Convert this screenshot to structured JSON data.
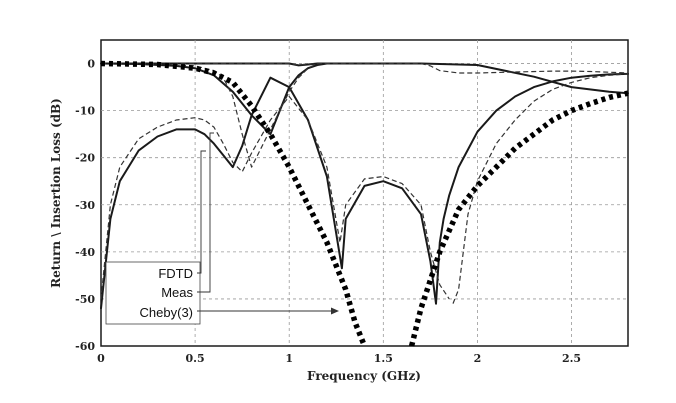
{
  "chart_data": {
    "type": "line",
    "xlabel": "Frequency (GHz)",
    "ylabel": "Return \\ Insertion Loss (dB)",
    "xlim": [
      0,
      2.8
    ],
    "ylim": [
      -60,
      5
    ],
    "x_ticks": [
      0,
      0.5,
      1,
      1.5,
      2,
      2.5
    ],
    "x_tick_labels": [
      "0",
      "0.5",
      "1",
      "1.5",
      "2",
      "2.5"
    ],
    "y_ticks": [
      0,
      -10,
      -20,
      -30,
      -40,
      -50,
      -60
    ],
    "y_tick_labels": [
      "0",
      "-10",
      "-20",
      "-30",
      "-40",
      "-50",
      "-60"
    ],
    "grid": true,
    "legend": {
      "placement": "bottom-left",
      "entries": [
        "FDTD",
        "Meas",
        "Cheby(3)"
      ]
    },
    "series": [
      {
        "name": "FDTD",
        "style": "solid",
        "color": "#1a1a1a",
        "curves": [
          {
            "x": [
              0.0,
              1.0,
              1.05,
              1.1,
              1.15,
              1.2,
              1.3,
              1.5,
              1.7,
              2.0,
              2.3,
              2.5,
              2.7,
              2.8
            ],
            "y": [
              0.0,
              0.0,
              -0.4,
              -0.2,
              0.0,
              0.0,
              0.0,
              0.0,
              0.0,
              -0.3,
              -2.8,
              -5.0,
              -6.0,
              -6.3
            ]
          },
          {
            "x": [
              0.0,
              0.2,
              0.4,
              0.5,
              0.6,
              0.7,
              0.8,
              0.9,
              0.95,
              1.0,
              1.05,
              1.1,
              1.15,
              1.2
            ],
            "y": [
              0.0,
              -0.1,
              -0.5,
              -1.0,
              -2.5,
              -6.0,
              -11.0,
              -15.0,
              -10.0,
              -5.0,
              -2.5,
              -1.0,
              -0.3,
              0.0
            ]
          },
          {
            "x": [
              0.0,
              0.05,
              0.1,
              0.2,
              0.3,
              0.4,
              0.5,
              0.55,
              0.6,
              0.65,
              0.7,
              0.75,
              0.8,
              0.9,
              1.0,
              1.1,
              1.2,
              1.28,
              1.3,
              1.4,
              1.5,
              1.6,
              1.7,
              1.75,
              1.78
            ],
            "y": [
              -52.0,
              -33.0,
              -25.0,
              -18.5,
              -15.5,
              -14.0,
              -14.0,
              -15.0,
              -17.0,
              -19.5,
              -22.0,
              -17.5,
              -11.0,
              -3.0,
              -5.0,
              -12.0,
              -24.0,
              -43.5,
              -33.0,
              -26.0,
              -25.0,
              -26.5,
              -32.0,
              -42.0,
              -51.0
            ]
          },
          {
            "x": [
              1.78,
              1.8,
              1.82,
              1.85,
              1.9,
              2.0,
              2.1,
              2.2,
              2.3,
              2.4,
              2.5,
              2.6,
              2.7,
              2.8
            ],
            "y": [
              -51.0,
              -38.0,
              -33.0,
              -28.0,
              -22.0,
              -14.5,
              -10.0,
              -7.0,
              -5.0,
              -3.8,
              -3.0,
              -2.6,
              -2.3,
              -2.2
            ]
          }
        ]
      },
      {
        "name": "Meas",
        "style": "dashed",
        "color": "#333333",
        "curves": [
          {
            "x": [
              0.0,
              1.0,
              1.05,
              1.1,
              1.2,
              1.5,
              1.7,
              1.75,
              1.8,
              1.9,
              2.0,
              2.2,
              2.4,
              2.5,
              2.6,
              2.8
            ],
            "y": [
              0.0,
              0.0,
              -0.3,
              -0.1,
              0.0,
              0.0,
              0.0,
              -0.5,
              -1.5,
              -2.0,
              -2.0,
              -1.8,
              -1.6,
              -1.6,
              -1.7,
              -2.0
            ]
          },
          {
            "x": [
              0.0,
              0.3,
              0.5,
              0.6,
              0.65,
              0.7,
              0.75,
              0.8,
              0.85,
              0.9,
              0.95,
              1.0,
              1.05,
              1.1,
              1.15
            ],
            "y": [
              0.0,
              -0.2,
              -0.5,
              -1.5,
              -3.0,
              -7.0,
              -15.0,
              -22.0,
              -18.0,
              -14.0,
              -10.0,
              -6.0,
              -3.0,
              -1.0,
              0.0
            ]
          },
          {
            "x": [
              0.0,
              0.05,
              0.1,
              0.2,
              0.3,
              0.4,
              0.5,
              0.55,
              0.6,
              0.65,
              0.7,
              0.75,
              0.8,
              0.9,
              1.0,
              1.1,
              1.2,
              1.27,
              1.3,
              1.4,
              1.5,
              1.6,
              1.7,
              1.75,
              1.8,
              1.85
            ],
            "y": [
              -50.0,
              -30.0,
              -22.0,
              -16.0,
              -13.5,
              -12.0,
              -11.5,
              -12.0,
              -13.5,
              -17.0,
              -21.0,
              -23.0,
              -19.0,
              -12.0,
              -7.0,
              -12.0,
              -22.0,
              -38.0,
              -30.0,
              -24.5,
              -24.0,
              -25.5,
              -30.0,
              -40.0,
              -47.0,
              -50.0
            ]
          },
          {
            "x": [
              1.87,
              1.9,
              1.95,
              2.0,
              2.1,
              2.2,
              2.3,
              2.4,
              2.5,
              2.6,
              2.7,
              2.8
            ],
            "y": [
              -51.0,
              -48.0,
              -32.0,
              -25.0,
              -17.0,
              -12.0,
              -8.0,
              -5.5,
              -4.0,
              -3.0,
              -2.5,
              -2.2
            ]
          }
        ]
      },
      {
        "name": "Cheby(3)",
        "style": "dotted-thick",
        "color": "#000000",
        "curves": [
          {
            "x": [
              0.0,
              0.3,
              0.5,
              0.6,
              0.7,
              0.8,
              0.9,
              1.0,
              1.1,
              1.2,
              1.3,
              1.35,
              1.4
            ],
            "y": [
              0.0,
              -0.2,
              -1.0,
              -2.0,
              -4.0,
              -9.0,
              -15.0,
              -22.0,
              -30.0,
              -38.0,
              -48.0,
              -55.0,
              -60.0
            ]
          },
          {
            "x": [
              1.65,
              1.7,
              1.8,
              1.9,
              2.0,
              2.1,
              2.2,
              2.3,
              2.4,
              2.5,
              2.6,
              2.7,
              2.8
            ],
            "y": [
              -60.0,
              -52.0,
              -40.0,
              -31.0,
              -26.0,
              -22.0,
              -18.0,
              -15.0,
              -12.0,
              -10.0,
              -8.5,
              -7.2,
              -6.3
            ]
          }
        ]
      }
    ]
  }
}
